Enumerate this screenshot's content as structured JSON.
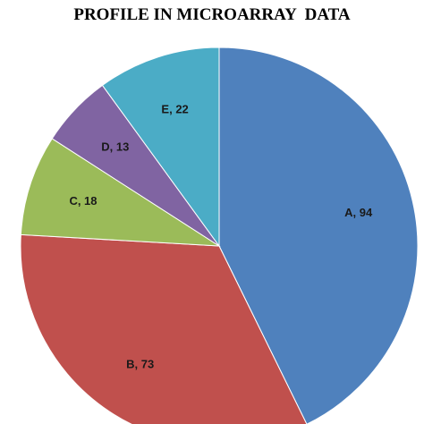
{
  "chart_data": {
    "type": "pie",
    "title": "PROFILE IN MICROARRAY  DATA",
    "categories": [
      "A",
      "B",
      "C",
      "D",
      "E"
    ],
    "values": [
      94,
      73,
      18,
      13,
      22
    ],
    "data_labels": [
      "A, 94",
      "B, 73",
      "C, 18",
      "D, 13",
      "E, 22"
    ],
    "colors": [
      "#4f81bd",
      "#c0504d",
      "#9bbb59",
      "#8064a2",
      "#4bacc6"
    ],
    "start_angle_deg": 0,
    "direction": "clockwise",
    "legend": "none"
  }
}
